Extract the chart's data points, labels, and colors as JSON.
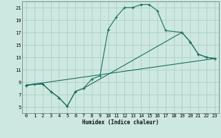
{
  "xlabel": "Humidex (Indice chaleur)",
  "bg_color": "#cde8e0",
  "grid_color": "#aacfc8",
  "line_color": "#1a6b5e",
  "xlim": [
    -0.5,
    23.5
  ],
  "ylim": [
    4,
    22
  ],
  "xticks": [
    0,
    1,
    2,
    3,
    4,
    5,
    6,
    7,
    8,
    9,
    10,
    11,
    12,
    13,
    14,
    15,
    16,
    17,
    18,
    19,
    20,
    21,
    22,
    23
  ],
  "yticks": [
    5,
    7,
    9,
    11,
    13,
    15,
    17,
    19,
    21
  ],
  "line1_x": [
    0,
    1,
    2,
    3,
    4,
    5,
    6,
    7,
    8,
    9,
    10,
    11,
    12,
    13,
    14,
    15,
    16,
    17,
    19,
    20,
    21,
    22,
    23
  ],
  "line1_y": [
    8.5,
    8.7,
    8.7,
    7.5,
    6.5,
    5.1,
    7.5,
    8.0,
    9.5,
    10.0,
    17.5,
    19.5,
    21.0,
    21.0,
    21.5,
    21.5,
    20.5,
    17.3,
    17.0,
    15.5,
    13.5,
    13.0,
    12.8
  ],
  "line2_x": [
    0,
    2,
    3,
    4,
    5,
    6,
    7,
    19,
    20,
    21,
    22,
    23
  ],
  "line2_y": [
    8.5,
    8.7,
    7.5,
    6.5,
    5.1,
    7.5,
    8.0,
    17.0,
    15.5,
    13.5,
    13.0,
    12.8
  ],
  "line3_x": [
    0,
    23
  ],
  "line3_y": [
    8.5,
    12.8
  ],
  "marker": "+"
}
